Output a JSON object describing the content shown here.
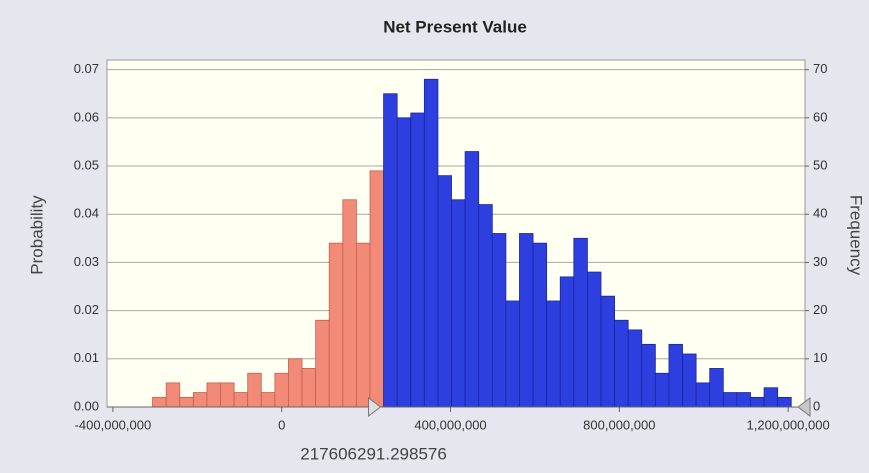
{
  "chart_data": {
    "type": "histogram",
    "title": "Net Present Value",
    "y_label": "Probability",
    "y2_label": "Frequency",
    "bins": [
      -306000000,
      -273800000,
      -241600000,
      -209400000,
      -177200000,
      -145000000,
      -112800000,
      -80600000,
      -48400000,
      -16200000,
      16000000,
      48200000,
      80400000,
      112600000,
      144800000,
      177000000,
      209200000,
      241400000,
      273600000,
      305800000,
      338000000,
      370200000,
      402400000,
      434600000,
      466800000,
      499000000,
      531200000,
      563400000,
      595600000,
      627800000,
      660000000,
      692200000,
      724400000,
      756600000,
      788800000,
      821000000,
      853200000,
      885400000,
      917600000,
      949800000,
      982000000,
      1014200000,
      1046400000,
      1078600000,
      1110800000,
      1143000000,
      1175200000,
      1207400000
    ],
    "values": [
      0.002,
      0.005,
      0.002,
      0.003,
      0.005,
      0.005,
      0.003,
      0.007,
      0.003,
      0.007,
      0.01,
      0.008,
      0.018,
      0.034,
      0.043,
      0.034,
      0.049,
      0.065,
      0.06,
      0.061,
      0.068,
      0.048,
      0.043,
      0.053,
      0.042,
      0.036,
      0.022,
      0.036,
      0.034,
      0.022,
      0.027,
      0.035,
      0.028,
      0.023,
      0.018,
      0.016,
      0.013,
      0.007,
      0.013,
      0.011,
      0.005,
      0.008,
      0.003,
      0.003,
      0.002,
      0.004,
      0.002
    ],
    "threshold": 217606291.298576,
    "color_below": "#f28a78",
    "color_above": "#2e3fe0",
    "xlim": [
      -414000000,
      1240000000
    ],
    "xticks": [
      {
        "value": -400000000,
        "label": "-400,000,000"
      },
      0,
      {
        "value": 400000000,
        "label": "400,000,000"
      },
      {
        "value": 800000000,
        "label": "800,000,000"
      },
      {
        "value": 1200000000,
        "label": "1,200,000,000"
      }
    ],
    "ylim": [
      0,
      0.072
    ],
    "yticks": [
      {
        "value": 0,
        "label": "0.00"
      },
      0.01,
      0.02,
      0.03,
      0.04,
      0.05,
      0.06,
      0.07
    ],
    "y2lim": [
      0,
      72
    ],
    "y2ticks": [
      0,
      10,
      20,
      30,
      40,
      50,
      60,
      70
    ],
    "grid": true
  }
}
